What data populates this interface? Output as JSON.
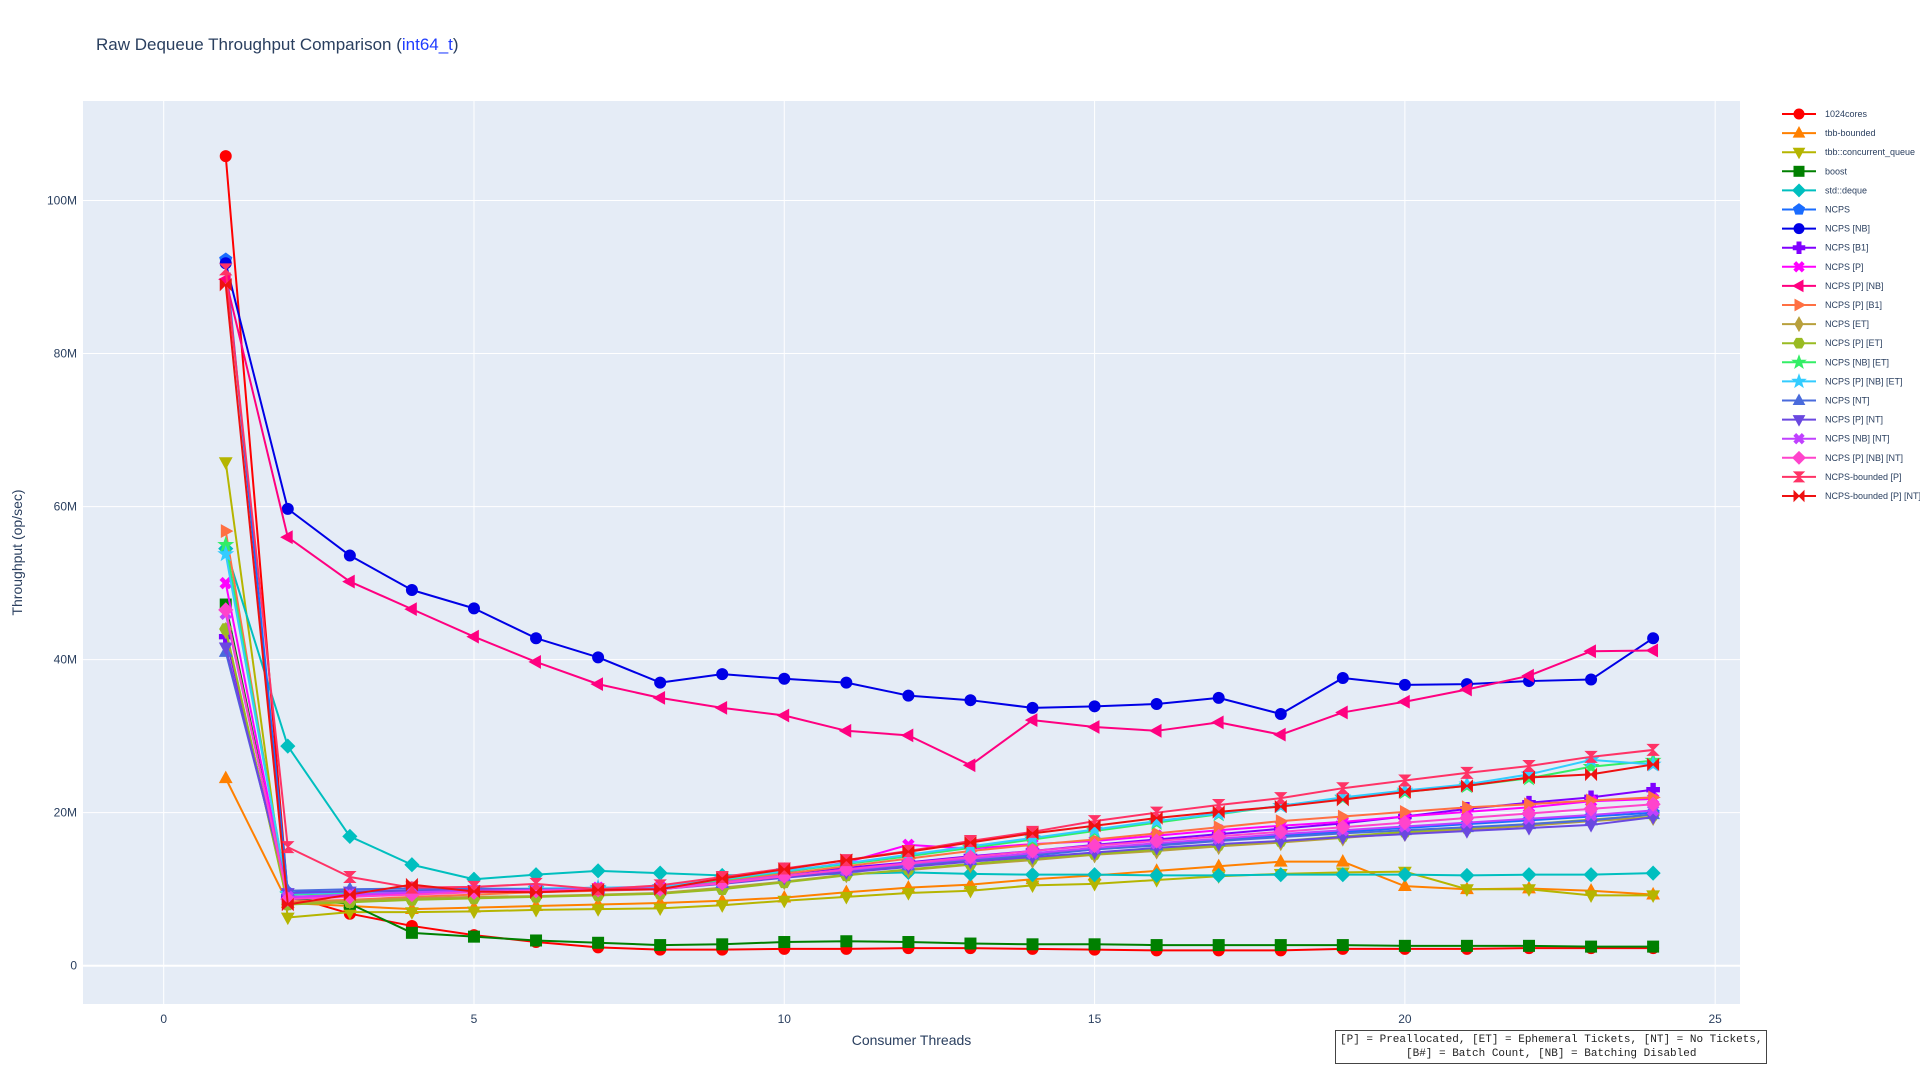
{
  "chart_data": {
    "type": "line",
    "title_prefix": "Raw Dequeue Throughput Comparison (",
    "title_highlight": "int64_t",
    "title_suffix": ")",
    "xlabel": "Consumer Threads",
    "ylabel": "Throughput (op/sec)",
    "xlim": [
      -1.3,
      25.4
    ],
    "ylim": [
      -5000000,
      113000000
    ],
    "x_ticks": [
      0,
      5,
      10,
      15,
      20,
      25
    ],
    "y_ticks": [
      0,
      20000000,
      40000000,
      60000000,
      80000000,
      100000000
    ],
    "y_tick_labels": [
      "0",
      "20M",
      "40M",
      "60M",
      "80M",
      "100M"
    ],
    "grid": true,
    "legend_position": "right",
    "annotation_line1": "[P] = Preallocated, [ET] = Ephemeral Tickets, [NT] = No Tickets,",
    "annotation_line2": "[B#] = Batch Count, [NB] = Batching Disabled",
    "x": [
      1,
      2,
      3,
      4,
      5,
      6,
      7,
      8,
      9,
      10,
      11,
      12,
      13,
      14,
      15,
      16,
      17,
      18,
      19,
      20,
      21,
      22,
      23,
      24
    ],
    "series": [
      {
        "name": "1024cores",
        "color": "#ff0000",
        "marker": "circle",
        "values": [
          105800000,
          9200000,
          6800000,
          5200000,
          4000000,
          3100000,
          2400000,
          2100000,
          2100000,
          2200000,
          2200000,
          2300000,
          2300000,
          2200000,
          2100000,
          2000000,
          2000000,
          2000000,
          2200000,
          2200000,
          2200000,
          2300000,
          2300000,
          2300000
        ]
      },
      {
        "name": "tbb-bounded",
        "color": "#ff8000",
        "marker": "triangle-up",
        "values": [
          24500000,
          8200000,
          7800000,
          7400000,
          7600000,
          7800000,
          8000000,
          8200000,
          8500000,
          8900000,
          9600000,
          10200000,
          10600000,
          11300000,
          11800000,
          12400000,
          13000000,
          13600000,
          13600000,
          10400000,
          10000000,
          10100000,
          9800000,
          9300000
        ]
      },
      {
        "name": "tbb::concurrent_queue",
        "color": "#b5b500",
        "marker": "triangle-down",
        "values": [
          65800000,
          6300000,
          7000000,
          7000000,
          7100000,
          7300000,
          7400000,
          7500000,
          7900000,
          8500000,
          9000000,
          9500000,
          9800000,
          10500000,
          10700000,
          11200000,
          11700000,
          12000000,
          12200000,
          12300000,
          10000000,
          10000000,
          9200000,
          9200000
        ]
      },
      {
        "name": "boost",
        "color": "#008000",
        "marker": "square",
        "values": [
          47200000,
          8800000,
          8100000,
          4300000,
          3800000,
          3300000,
          3000000,
          2700000,
          2800000,
          3100000,
          3200000,
          3100000,
          2900000,
          2800000,
          2800000,
          2700000,
          2700000,
          2700000,
          2700000,
          2600000,
          2600000,
          2600000,
          2500000,
          2500000
        ]
      },
      {
        "name": "std::deque",
        "color": "#00bfbf",
        "marker": "diamond",
        "values": [
          54500000,
          28700000,
          16900000,
          13200000,
          11300000,
          11900000,
          12400000,
          12100000,
          11800000,
          11900000,
          12000000,
          12200000,
          12000000,
          11900000,
          11900000,
          11800000,
          11800000,
          11900000,
          11900000,
          11900000,
          11800000,
          11900000,
          11900000,
          12100000
        ]
      },
      {
        "name": "NCPS",
        "color": "#1a6cff",
        "marker": "pentagon",
        "values": [
          92300000,
          9600000,
          9700000,
          9800000,
          9800000,
          9800000,
          9900000,
          10000000,
          10800000,
          11600000,
          12300000,
          13000000,
          13700000,
          14400000,
          15200000,
          15800000,
          16500000,
          17000000,
          17500000,
          18000000,
          18500000,
          19000000,
          19500000,
          20000000
        ]
      },
      {
        "name": "NCPS [NB]",
        "color": "#0000e6",
        "marker": "circle",
        "values": [
          91800000,
          59700000,
          53600000,
          49100000,
          46700000,
          42800000,
          40300000,
          37000000,
          38100000,
          37500000,
          37000000,
          35300000,
          34700000,
          33700000,
          33900000,
          34200000,
          35000000,
          32900000,
          37600000,
          36700000,
          36800000,
          37200000,
          37400000,
          42800000
        ]
      },
      {
        "name": "NCPS [B1]",
        "color": "#8000ff",
        "marker": "cross",
        "values": [
          43000000,
          9000000,
          9200000,
          9500000,
          9700000,
          9800000,
          9900000,
          10000000,
          11000000,
          12000000,
          12800000,
          13500000,
          14300000,
          15000000,
          15800000,
          16500000,
          17200000,
          17900000,
          18600000,
          19500000,
          20500000,
          21300000,
          22000000,
          23000000
        ]
      },
      {
        "name": "NCPS [P]",
        "color": "#ff00ff",
        "marker": "x",
        "values": [
          50000000,
          8800000,
          9200000,
          9500000,
          9800000,
          10000000,
          10200000,
          10300000,
          11300000,
          12200000,
          13500000,
          15800000,
          15300000,
          15900000,
          16300000,
          17000000,
          17700000,
          18300000,
          18800000,
          19500000,
          20100000,
          20700000,
          21500000,
          21800000
        ]
      },
      {
        "name": "NCPS [P] [NB]",
        "color": "#ff0080",
        "marker": "triangle-left",
        "values": [
          89700000,
          56000000,
          50200000,
          46600000,
          43000000,
          39700000,
          36800000,
          35000000,
          33700000,
          32700000,
          30700000,
          30100000,
          26200000,
          32100000,
          31200000,
          30700000,
          31800000,
          30200000,
          33100000,
          34500000,
          36100000,
          37900000,
          41100000,
          41200000
        ]
      },
      {
        "name": "NCPS [P] [B1]",
        "color": "#ff7043",
        "marker": "triangle-right",
        "values": [
          56800000,
          8400000,
          8600000,
          9000000,
          9300000,
          9600000,
          9800000,
          10000000,
          11000000,
          12000000,
          13000000,
          14000000,
          15000000,
          15800000,
          16500000,
          17300000,
          18100000,
          18900000,
          19500000,
          20100000,
          20700000,
          21100000,
          21600000,
          22000000
        ]
      },
      {
        "name": "NCPS [ET]",
        "color": "#b8a03c",
        "marker": "diamond-tall",
        "values": [
          43800000,
          8200000,
          8500000,
          8800000,
          9000000,
          9100000,
          9300000,
          9500000,
          10200000,
          11000000,
          11900000,
          12500000,
          13200000,
          13800000,
          14500000,
          15000000,
          15600000,
          16100000,
          16700000,
          17300000,
          17800000,
          18300000,
          18900000,
          19400000
        ]
      },
      {
        "name": "NCPS [P] [ET]",
        "color": "#99bb22",
        "marker": "hexagon",
        "values": [
          44000000,
          8000000,
          8300000,
          8600000,
          8800000,
          9000000,
          9200000,
          9400000,
          10000000,
          10900000,
          11800000,
          12600000,
          13300000,
          14000000,
          14600000,
          15200000,
          15800000,
          16300000,
          16900000,
          17500000,
          18000000,
          18500000,
          19100000,
          19700000
        ]
      },
      {
        "name": "NCPS [NB] [ET]",
        "color": "#33ee66",
        "marker": "star",
        "values": [
          55000000,
          9300000,
          9500000,
          9700000,
          9900000,
          10000000,
          10100000,
          10200000,
          11200000,
          12300000,
          13300000,
          14300000,
          15400000,
          16500000,
          17600000,
          18700000,
          19800000,
          20900000,
          21900000,
          22700000,
          23500000,
          24500000,
          26000000,
          26800000
        ]
      },
      {
        "name": "NCPS [P] [NB] [ET]",
        "color": "#33ccff",
        "marker": "star",
        "values": [
          53800000,
          9400000,
          9600000,
          9800000,
          10000000,
          10100000,
          10200000,
          10300000,
          11300000,
          12400000,
          13400000,
          14500000,
          15600000,
          16700000,
          17800000,
          18900000,
          19900000,
          20900000,
          22000000,
          22900000,
          23700000,
          25000000,
          26900000,
          26300000
        ]
      },
      {
        "name": "NCPS [NT]",
        "color": "#4a6bdc",
        "marker": "triangle-up",
        "values": [
          41000000,
          9800000,
          10000000,
          10100000,
          10100000,
          10000000,
          10000000,
          10100000,
          10800000,
          11700000,
          12400000,
          13100000,
          13800000,
          14500000,
          15200000,
          15700000,
          16300000,
          16800000,
          17300000,
          17700000,
          18100000,
          18500000,
          19000000,
          19800000
        ]
      },
      {
        "name": "NCPS [P] [NT]",
        "color": "#6a48e0",
        "marker": "triangle-down",
        "values": [
          41600000,
          9500000,
          9700000,
          9800000,
          9900000,
          9900000,
          9900000,
          10000000,
          10700000,
          11500000,
          12200000,
          12900000,
          13600000,
          14200000,
          14800000,
          15400000,
          15900000,
          16300000,
          16800000,
          17200000,
          17600000,
          18000000,
          18400000,
          19400000
        ]
      },
      {
        "name": "NCPS [NB] [NT]",
        "color": "#c040ff",
        "marker": "x",
        "values": [
          46000000,
          9000000,
          9300000,
          9600000,
          9800000,
          9900000,
          10000000,
          10100000,
          10900000,
          11800000,
          12500000,
          13300000,
          14000000,
          14700000,
          15400000,
          16000000,
          16600000,
          17200000,
          17700000,
          18200000,
          18700000,
          19200000,
          19700000,
          20300000
        ]
      },
      {
        "name": "NCPS [P] [NB] [NT]",
        "color": "#ff44cc",
        "marker": "diamond",
        "values": [
          46500000,
          8700000,
          9000000,
          9300000,
          9600000,
          9800000,
          9900000,
          10000000,
          10800000,
          11700000,
          12600000,
          13400000,
          14200000,
          15000000,
          15700000,
          16300000,
          16900000,
          17500000,
          18100000,
          18700000,
          19300000,
          19900000,
          20500000,
          21100000
        ]
      },
      {
        "name": "NCPS-bounded [P]",
        "color": "#ff3366",
        "marker": "hourglass",
        "values": [
          91000000,
          15500000,
          11600000,
          10200000,
          10300000,
          10700000,
          10000000,
          10500000,
          11600000,
          12700000,
          13800000,
          15000000,
          16300000,
          17500000,
          18900000,
          20000000,
          21000000,
          21900000,
          23200000,
          24200000,
          25200000,
          26100000,
          27300000,
          28200000
        ]
      },
      {
        "name": "NCPS-bounded [P] [NT]",
        "color": "#ee1111",
        "marker": "bowtie",
        "values": [
          89000000,
          8000000,
          9300000,
          10600000,
          9700000,
          9600000,
          9900000,
          10000000,
          11400000,
          12600000,
          13800000,
          14900000,
          16100000,
          17300000,
          18300000,
          19300000,
          20100000,
          20800000,
          21700000,
          22700000,
          23500000,
          24600000,
          25000000,
          26300000
        ]
      }
    ]
  }
}
